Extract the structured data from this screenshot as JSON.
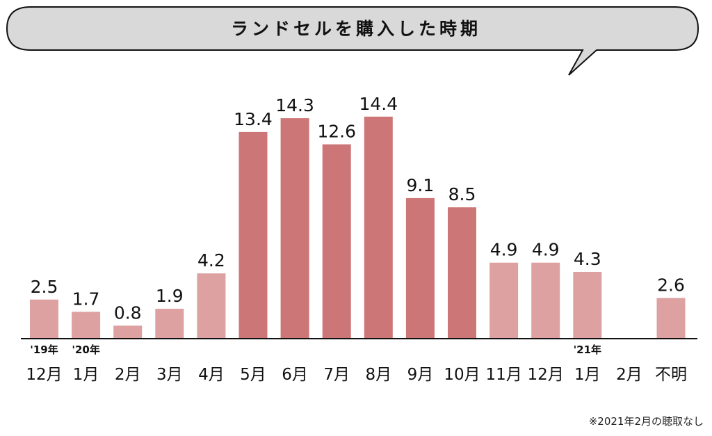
{
  "chart_data": {
    "type": "bar",
    "title": "ランドセルを購入した時期",
    "categories": [
      "12月",
      "1月",
      "2月",
      "3月",
      "4月",
      "5月",
      "6月",
      "7月",
      "8月",
      "9月",
      "10月",
      "11月",
      "12月",
      "1月",
      "2月",
      "不明"
    ],
    "year_labels": [
      "'19年",
      "'20年",
      "",
      "",
      "",
      "",
      "",
      "",
      "",
      "",
      "",
      "",
      "",
      "'21年",
      "",
      ""
    ],
    "values": [
      2.5,
      1.7,
      0.8,
      1.9,
      4.2,
      13.4,
      14.3,
      12.6,
      14.4,
      9.1,
      8.5,
      4.9,
      4.9,
      4.3,
      null,
      2.6
    ],
    "value_labels": [
      "2.5",
      "1.7",
      "0.8",
      "1.9",
      "4.2",
      "13.4",
      "14.3",
      "12.6",
      "14.4",
      "9.1",
      "8.5",
      "4.9",
      "4.9",
      "4.3",
      "",
      "2.6"
    ],
    "highlight": [
      false,
      false,
      false,
      false,
      false,
      true,
      true,
      true,
      true,
      true,
      true,
      false,
      false,
      false,
      false,
      false
    ],
    "colors": {
      "light": "#dea1a1",
      "dark": "#cd7678",
      "axis": "#111111",
      "bubble": "#d9d9d9"
    },
    "ylim": [
      0,
      15
    ],
    "grid": false,
    "legend": "none",
    "footnote": "※2021年2月の聴取なし"
  }
}
